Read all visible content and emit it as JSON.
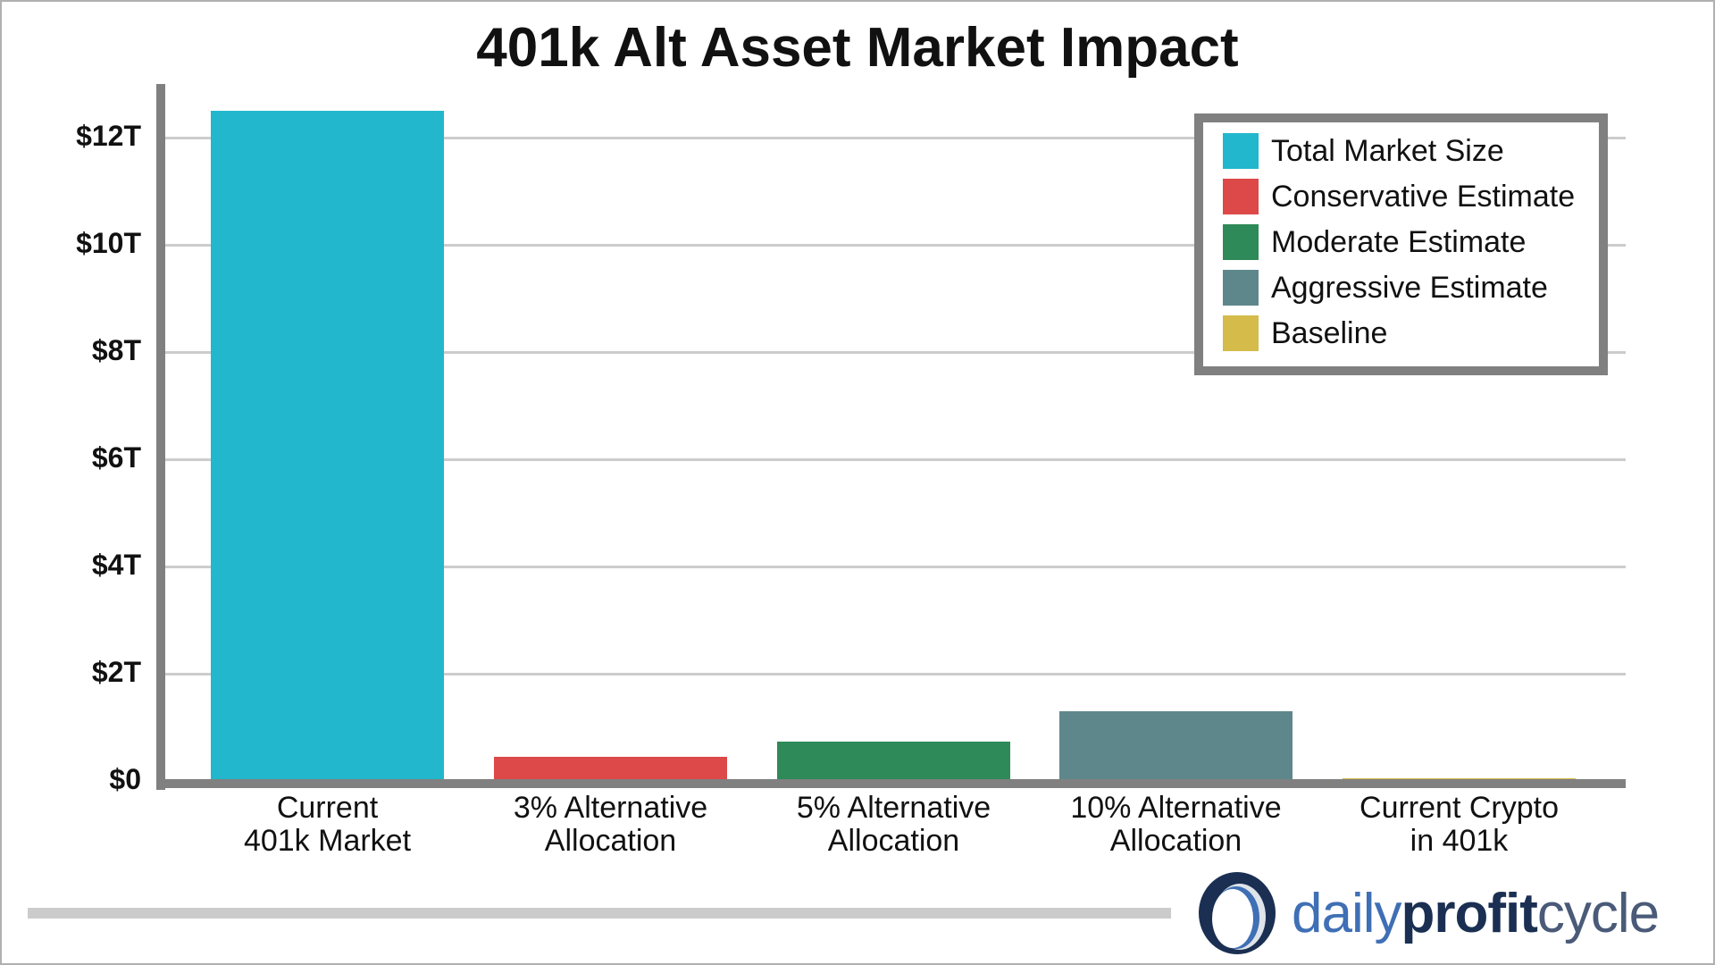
{
  "chart_data": {
    "type": "bar",
    "title": "401k Alt Asset Market Impact",
    "xlabel": "",
    "ylabel": "",
    "ylim": [
      0,
      12.5
    ],
    "grid": true,
    "legend_position": "upper right",
    "yticks": [
      "$0",
      "$2T",
      "$4T",
      "$6T",
      "$8T",
      "$10T",
      "$12T"
    ],
    "categories": [
      "Current 401k Market",
      "3% Alternative Allocation",
      "5% Alternative Allocation",
      "10% Alternative Allocation",
      "Current Crypto in 401k"
    ],
    "category_lines": [
      [
        "Current",
        "401k Market"
      ],
      [
        "3% Alternative",
        "Allocation"
      ],
      [
        "5% Alternative",
        "Allocation"
      ],
      [
        "10% Alternative",
        "Allocation"
      ],
      [
        "Current Crypto",
        "in 401k"
      ]
    ],
    "values": [
      12.5,
      0.45,
      0.73,
      1.3,
      0.05
    ],
    "units": "trillions USD",
    "series": [
      {
        "name": "Total Market Size",
        "color": "#22b7cc",
        "category": "Current 401k Market",
        "value": 12.5
      },
      {
        "name": "Conservative Estimate",
        "color": "#dd4848",
        "category": "3% Alternative Allocation",
        "value": 0.45
      },
      {
        "name": "Moderate Estimate",
        "color": "#2e8a58",
        "category": "5% Alternative Allocation",
        "value": 0.73
      },
      {
        "name": "Aggressive Estimate",
        "color": "#5e878c",
        "category": "10% Alternative Allocation",
        "value": 1.3
      },
      {
        "name": "Baseline",
        "color": "#d4bb4a",
        "category": "Current Crypto in 401k",
        "value": 0.05
      }
    ]
  },
  "legend": {
    "items": [
      {
        "label": "Total Market Size",
        "color": "#22b7cc"
      },
      {
        "label": "Conservative Estimate",
        "color": "#dd4848"
      },
      {
        "label": "Moderate Estimate",
        "color": "#2e8a58"
      },
      {
        "label": "Aggressive Estimate",
        "color": "#5e878c"
      },
      {
        "label": "Baseline",
        "color": "#d4bb4a"
      }
    ]
  },
  "brand": {
    "part1": "daily",
    "part2": "profit",
    "part3": "cycle",
    "icon": "ring-logo-icon"
  }
}
